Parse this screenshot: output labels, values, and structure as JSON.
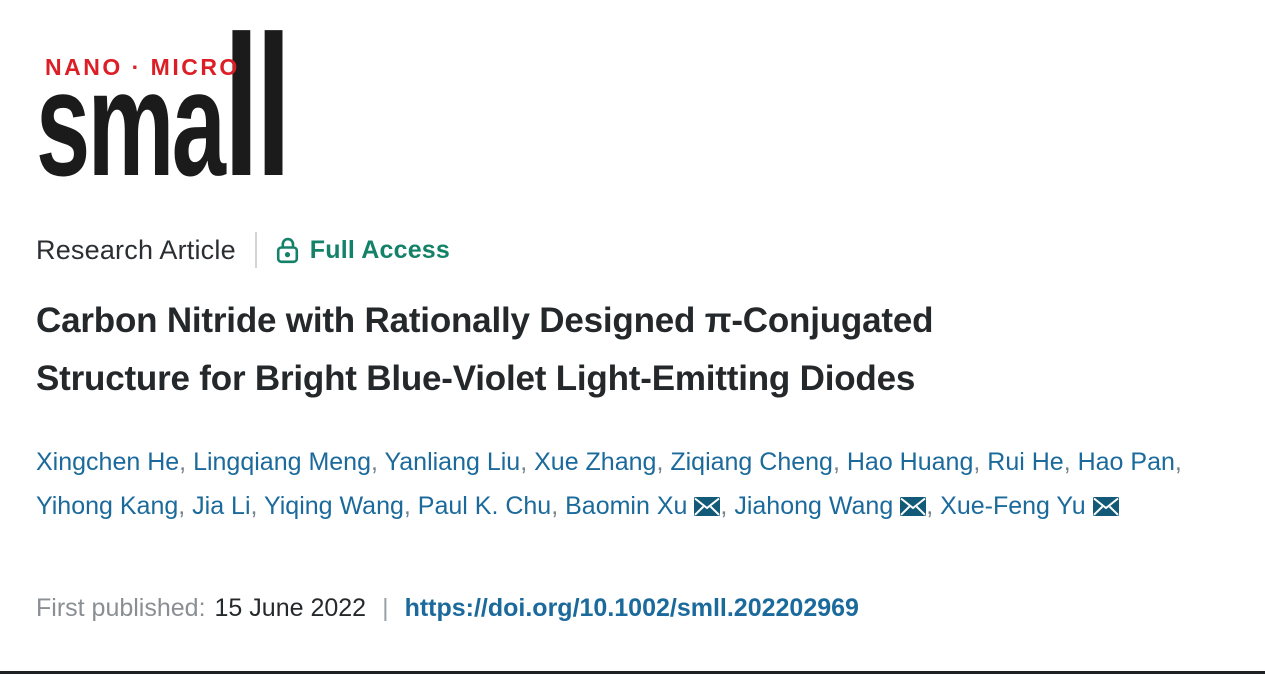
{
  "journal": {
    "logo_top": "NANO · MICRO",
    "logo_name": "small",
    "logo_red": "#dc1f26",
    "logo_black": "#1b1b1b"
  },
  "article_meta": {
    "type_label": "Research Article",
    "access_label": "Full Access",
    "access_color": "#148268",
    "lock_icon": "open-lock-icon"
  },
  "title_lines": "Carbon Nitride with Rationally Designed π-Conjugated\nStructure for Bright Blue-Violet Light-Emitting Diodes",
  "authors": {
    "separator": ", ",
    "link_color": "#1b6a9b",
    "email_icon": "email-envelope-icon",
    "email_icon_color": "#135a78",
    "list": [
      {
        "name": "Xingchen He",
        "email": false
      },
      {
        "name": "Lingqiang Meng",
        "email": false
      },
      {
        "name": "Yanliang Liu",
        "email": false
      },
      {
        "name": "Xue Zhang",
        "email": false
      },
      {
        "name": "Ziqiang Cheng",
        "email": false
      },
      {
        "name": "Hao Huang",
        "email": false
      },
      {
        "name": "Rui He",
        "email": false
      },
      {
        "name": "Hao Pan",
        "email": false
      },
      {
        "name": "Yihong Kang",
        "email": false
      },
      {
        "name": "Jia Li",
        "email": false
      },
      {
        "name": "Yiqing Wang",
        "email": false
      },
      {
        "name": "Paul K. Chu",
        "email": false
      },
      {
        "name": "Baomin Xu",
        "email": true
      },
      {
        "name": "Jiahong Wang",
        "email": true
      },
      {
        "name": "Xue-Feng Yu",
        "email": true
      }
    ]
  },
  "publication": {
    "label": "First published:",
    "date": "15 June 2022",
    "separator": "|",
    "doi": "https://doi.org/10.1002/smll.202202969"
  }
}
